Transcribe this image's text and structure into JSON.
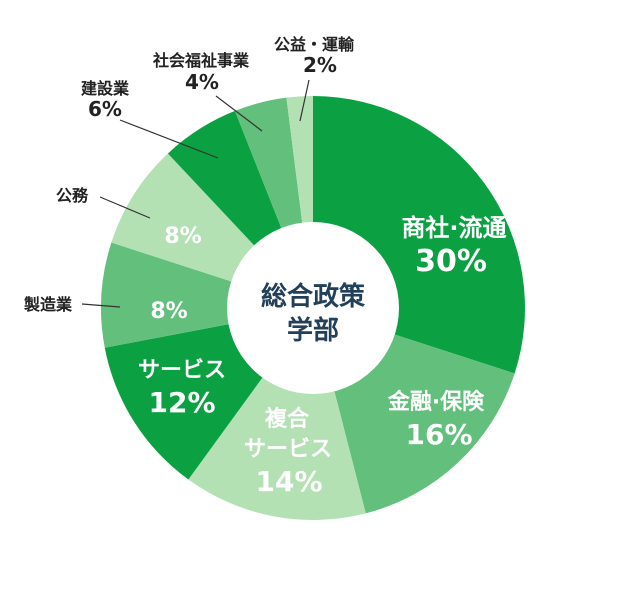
{
  "chart_data": {
    "type": "pie",
    "center_label": [
      "総合政策",
      "学部"
    ],
    "slices": [
      {
        "name": "商社·流通",
        "value": 30,
        "display": "30%",
        "color": "#0ba142"
      },
      {
        "name": "金融·保険",
        "value": 16,
        "display": "16%",
        "color": "#62c07c"
      },
      {
        "name_lines": [
          "複合",
          "サービス"
        ],
        "value": 14,
        "display": "14%",
        "color": "#b3e1b4"
      },
      {
        "name": "サービス",
        "value": 12,
        "display": "12%",
        "color": "#0ba142"
      },
      {
        "name": "製造業",
        "value": 8,
        "display": "8%",
        "color": "#62c07c"
      },
      {
        "name": "公務",
        "value": 8,
        "display": "8%",
        "color": "#b3e1b4"
      },
      {
        "name": "建設業",
        "value": 6,
        "display": "6%",
        "color": "#0ba142"
      },
      {
        "name": "社会福祉事業",
        "value": 4,
        "display": "4%",
        "color": "#62c07c"
      },
      {
        "name": "公益・運輸",
        "value": 2,
        "display": "2%",
        "color": "#b3e1b4"
      }
    ]
  }
}
